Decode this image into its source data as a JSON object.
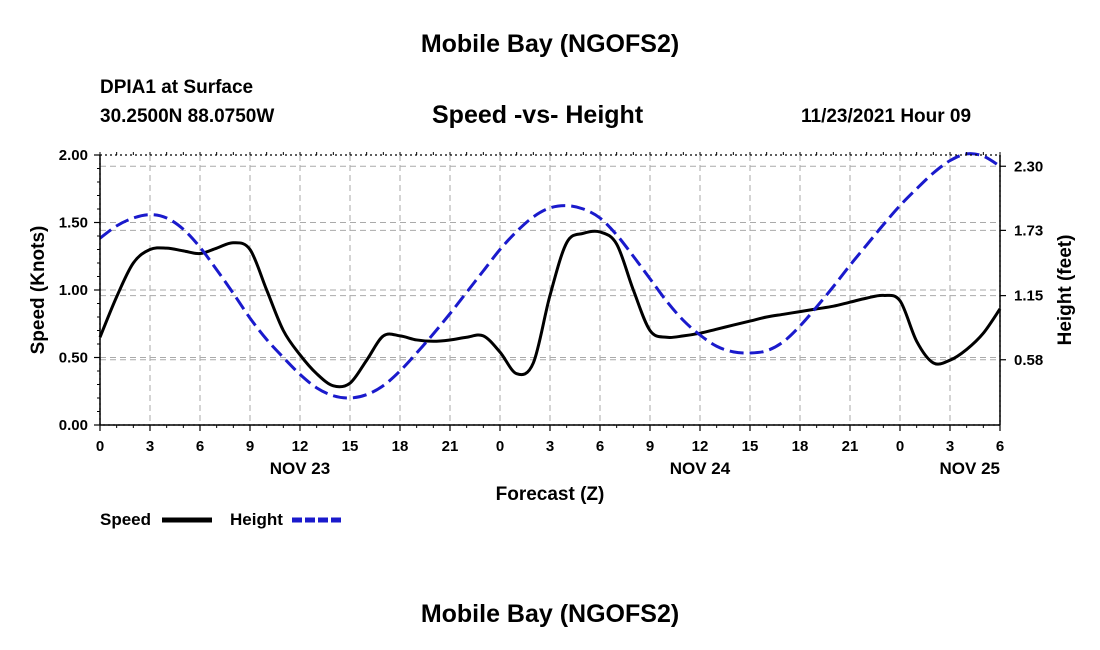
{
  "header": {
    "title": "Mobile Bay (NGOFS2)",
    "station": "DPIA1 at Surface",
    "coordinates": "30.2500N  88.0750W",
    "subtitle": "Speed -vs- Height",
    "datetime": "11/23/2021 Hour 09"
  },
  "footer": {
    "title": "Mobile Bay (NGOFS2)"
  },
  "chart_data": {
    "type": "line",
    "xlabel": "Forecast (Z)",
    "ylabel_left": "Speed (Knots)",
    "ylabel_right": "Height (feet)",
    "x_unit": "hours from NOV 23 00Z",
    "xlim": [
      -12,
      42
    ],
    "x_tick_values": [
      -12,
      -9,
      -6,
      -3,
      0,
      3,
      6,
      9,
      12,
      15,
      18,
      21,
      24,
      27,
      30,
      33,
      36,
      39,
      42
    ],
    "x_tick_labels": [
      "0",
      "3",
      "6",
      "9",
      "12",
      "15",
      "18",
      "21",
      "0",
      "3",
      "6",
      "9",
      "12",
      "15",
      "18",
      "21",
      "0",
      "3",
      "6"
    ],
    "date_labels": [
      {
        "label": "NOV 23",
        "x": 0
      },
      {
        "label": "NOV 24",
        "x": 24
      },
      {
        "label": "NOV 25",
        "x": 48
      }
    ],
    "ylim_left": [
      0,
      2
    ],
    "yticks_left": [
      "0.00",
      "0.50",
      "1.00",
      "1.50",
      "2.00"
    ],
    "ylim_right": [
      0.0,
      2.4
    ],
    "yticks_right": [
      "0.58",
      "1.15",
      "1.73",
      "2.30"
    ],
    "grid": true,
    "legend": {
      "position": "bottom-left",
      "entries": [
        "Speed",
        "Height"
      ]
    },
    "series": [
      {
        "name": "Speed",
        "axis": "left",
        "color": "#000000",
        "style": "solid",
        "x": [
          -12,
          -11,
          -10,
          -9,
          -8,
          -7,
          -6,
          -5,
          -4,
          -3,
          -2,
          -1,
          0,
          1,
          2,
          3,
          4,
          5,
          6,
          7,
          8,
          9,
          10,
          11,
          12,
          13,
          14,
          15,
          16,
          17,
          18,
          19,
          20,
          21,
          22,
          23,
          24,
          25,
          26,
          27,
          28,
          29,
          30,
          31,
          32,
          33,
          34,
          35,
          36,
          37,
          38,
          39,
          40,
          41,
          42
        ],
        "values": [
          0.65,
          0.95,
          1.2,
          1.3,
          1.31,
          1.29,
          1.27,
          1.31,
          1.35,
          1.3,
          1.0,
          0.7,
          0.52,
          0.38,
          0.29,
          0.31,
          0.48,
          0.66,
          0.66,
          0.63,
          0.62,
          0.63,
          0.65,
          0.66,
          0.54,
          0.38,
          0.46,
          0.96,
          1.35,
          1.42,
          1.43,
          1.34,
          1.0,
          0.7,
          0.65,
          0.66,
          0.68,
          0.71,
          0.74,
          0.77,
          0.8,
          0.82,
          0.84,
          0.86,
          0.88,
          0.91,
          0.94,
          0.96,
          0.92,
          0.62,
          0.46,
          0.48,
          0.56,
          0.68,
          0.86
        ]
      },
      {
        "name": "Height",
        "axis": "right",
        "color": "#1a1acc",
        "style": "dashed",
        "x": [
          -12,
          -11,
          -10,
          -9,
          -8,
          -7,
          -6,
          -5,
          -4,
          -3,
          -2,
          -1,
          0,
          1,
          2,
          3,
          4,
          5,
          6,
          7,
          8,
          9,
          10,
          11,
          12,
          13,
          14,
          15,
          16,
          17,
          18,
          19,
          20,
          21,
          22,
          23,
          24,
          25,
          26,
          27,
          28,
          29,
          30,
          31,
          32,
          33,
          34,
          35,
          36,
          37,
          38,
          39,
          40,
          41,
          42
        ],
        "values": [
          1.66,
          1.77,
          1.84,
          1.87,
          1.84,
          1.74,
          1.58,
          1.38,
          1.17,
          0.95,
          0.76,
          0.6,
          0.45,
          0.33,
          0.26,
          0.24,
          0.27,
          0.35,
          0.48,
          0.64,
          0.81,
          0.99,
          1.18,
          1.37,
          1.56,
          1.72,
          1.85,
          1.93,
          1.95,
          1.92,
          1.84,
          1.69,
          1.5,
          1.3,
          1.1,
          0.93,
          0.8,
          0.7,
          0.65,
          0.64,
          0.66,
          0.74,
          0.88,
          1.05,
          1.23,
          1.42,
          1.6,
          1.78,
          1.95,
          2.1,
          2.24,
          2.35,
          2.41,
          2.39,
          2.3
        ]
      }
    ]
  }
}
